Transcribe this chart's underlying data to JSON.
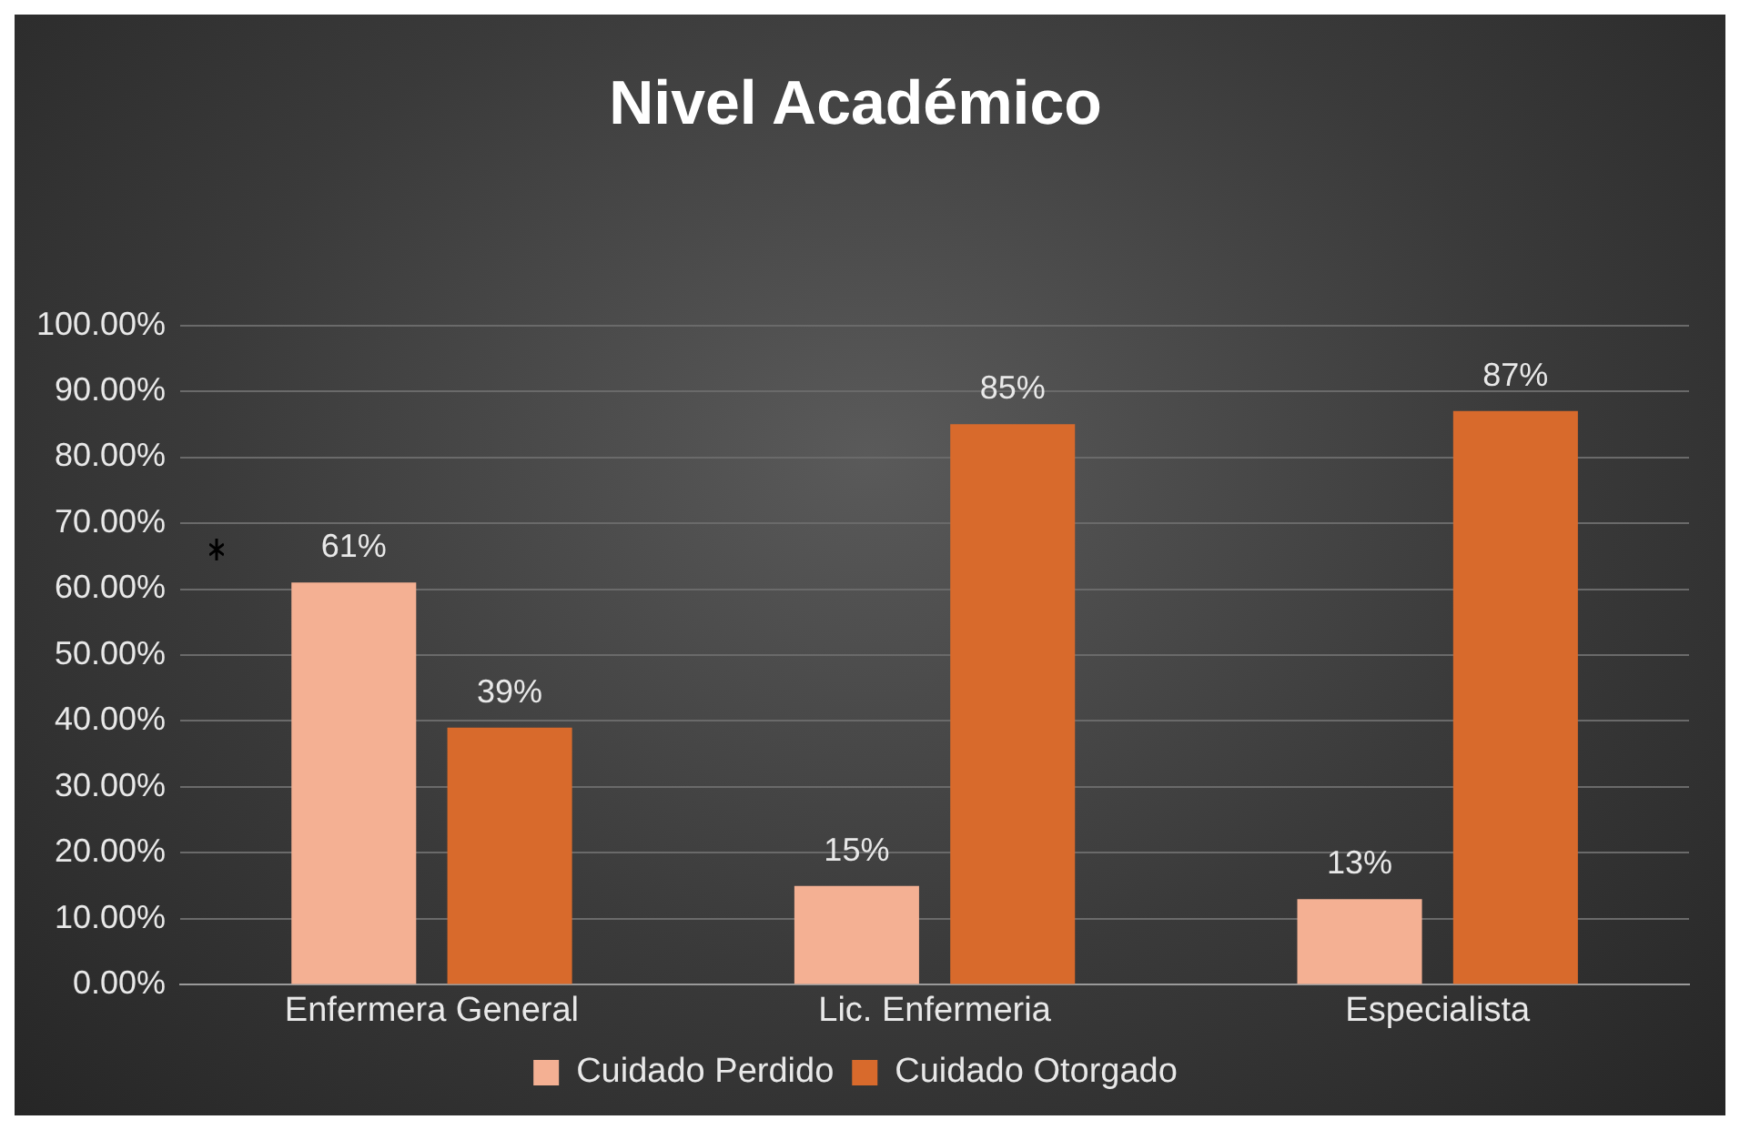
{
  "chart_data": {
    "type": "bar",
    "title": "Nivel Académico",
    "categories": [
      "Enfermera General",
      "Lic. Enfermeria",
      "Especialista"
    ],
    "series": [
      {
        "name": "Cuidado Perdido",
        "color": "#f4b093",
        "values": [
          61,
          15,
          13
        ],
        "value_labels": [
          "61%",
          "15%",
          "13%"
        ]
      },
      {
        "name": "Cuidado Otorgado",
        "color": "#d86a2c",
        "values": [
          39,
          85,
          87
        ],
        "value_labels": [
          "39%",
          "85%",
          "87%"
        ]
      }
    ],
    "ylim": [
      0,
      100
    ],
    "yticks": [
      {
        "value": 0,
        "label": "0.00%"
      },
      {
        "value": 10,
        "label": "10.00%"
      },
      {
        "value": 20,
        "label": "20.00%"
      },
      {
        "value": 30,
        "label": "30.00%"
      },
      {
        "value": 40,
        "label": "40.00%"
      },
      {
        "value": 50,
        "label": "50.00%"
      },
      {
        "value": 60,
        "label": "60.00%"
      },
      {
        "value": 70,
        "label": "70.00%"
      },
      {
        "value": 80,
        "label": "80.00%"
      },
      {
        "value": 90,
        "label": "90.00%"
      },
      {
        "value": 100,
        "label": "100.00%"
      }
    ],
    "grid": "y",
    "legend": "bottom"
  }
}
